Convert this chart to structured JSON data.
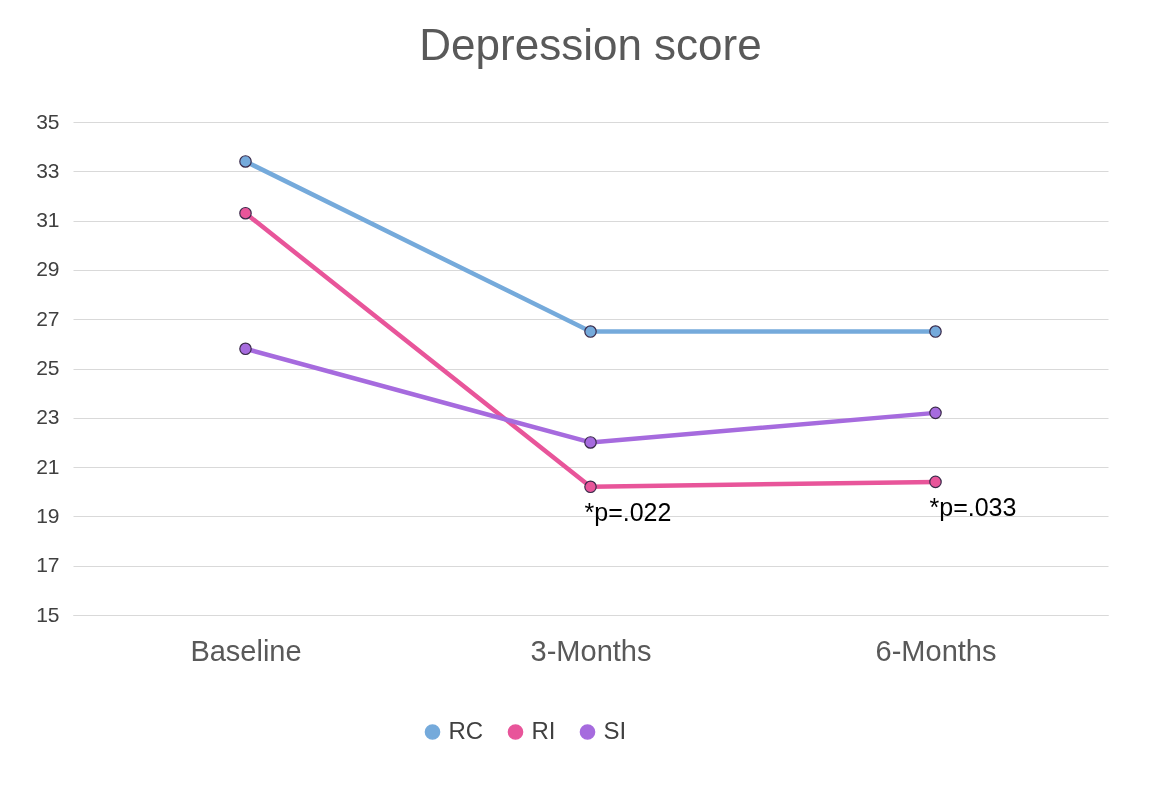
{
  "chart_data": {
    "type": "line",
    "title": "Depression score",
    "categories": [
      "Baseline",
      "3-Months",
      "6-Months"
    ],
    "series": [
      {
        "name": "RC",
        "color": "#75aadb",
        "values": [
          33.4,
          26.5,
          26.5
        ]
      },
      {
        "name": "RI",
        "color": "#e8559a",
        "values": [
          31.3,
          20.2,
          20.4
        ]
      },
      {
        "name": "SI",
        "color": "#a66bde",
        "values": [
          25.8,
          22.0,
          23.2
        ]
      }
    ],
    "annotations": [
      {
        "text": "*p=.022",
        "x": "3-Months",
        "y": 20.2
      },
      {
        "text": "*p=.033",
        "x": "6-Months",
        "y": 20.4
      }
    ],
    "ylim": [
      15,
      35
    ],
    "yticks": [
      15,
      17,
      19,
      21,
      23,
      25,
      27,
      29,
      31,
      33,
      35
    ],
    "grid": "y",
    "legend": "bottom",
    "marker": "circle",
    "line_style": "solid"
  }
}
